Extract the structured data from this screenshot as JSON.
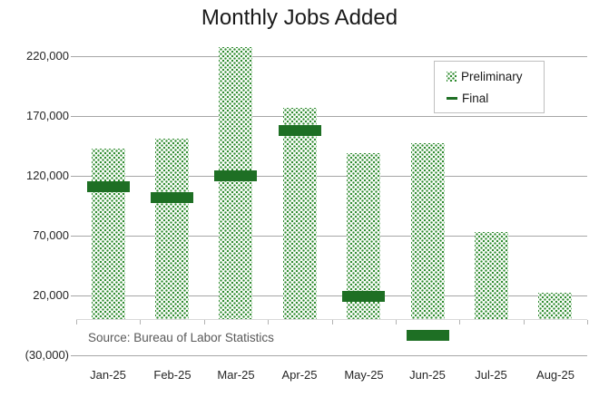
{
  "title": "Monthly Jobs Added",
  "source_note": "Source: Bureau of Labor Statistics",
  "legend": {
    "items": [
      {
        "label": "Preliminary",
        "swatch": "dotted-pattern-square"
      },
      {
        "label": "Final",
        "swatch": "dark-green-dash"
      }
    ]
  },
  "colors": {
    "preliminary_pattern_green": "#2e8b2e",
    "final_green": "#1e6f24",
    "gridline_gray": "#a6a6a6",
    "zero_axis_gray": "#d9d9d9",
    "axis_text": "#262626",
    "source_text": "#595959",
    "legend_border": "#bfbfbf"
  },
  "chart_data": {
    "type": "bar",
    "title": "Monthly Jobs Added",
    "categories": [
      "Jan-25",
      "Feb-25",
      "Mar-25",
      "Apr-25",
      "May-25",
      "Jun-25",
      "Jul-25",
      "Aug-25"
    ],
    "series": [
      {
        "name": "Preliminary",
        "type": "pattern-bar",
        "values": [
          143000,
          151000,
          228000,
          177000,
          139000,
          147000,
          73000,
          22000
        ]
      },
      {
        "name": "Final",
        "type": "dash-marker",
        "values": [
          111000,
          102000,
          120000,
          158000,
          19000,
          -13000,
          null,
          null
        ]
      }
    ],
    "ylim": [
      -30000,
      230000
    ],
    "ytick_interval": 50000,
    "ytick_labels": [
      "(30,000)",
      "20,000",
      "70,000",
      "120,000",
      "170,000",
      "220,000"
    ],
    "grid": true,
    "legend_position": "top-right",
    "annotations": [
      "Source: Bureau of Labor Statistics"
    ]
  }
}
